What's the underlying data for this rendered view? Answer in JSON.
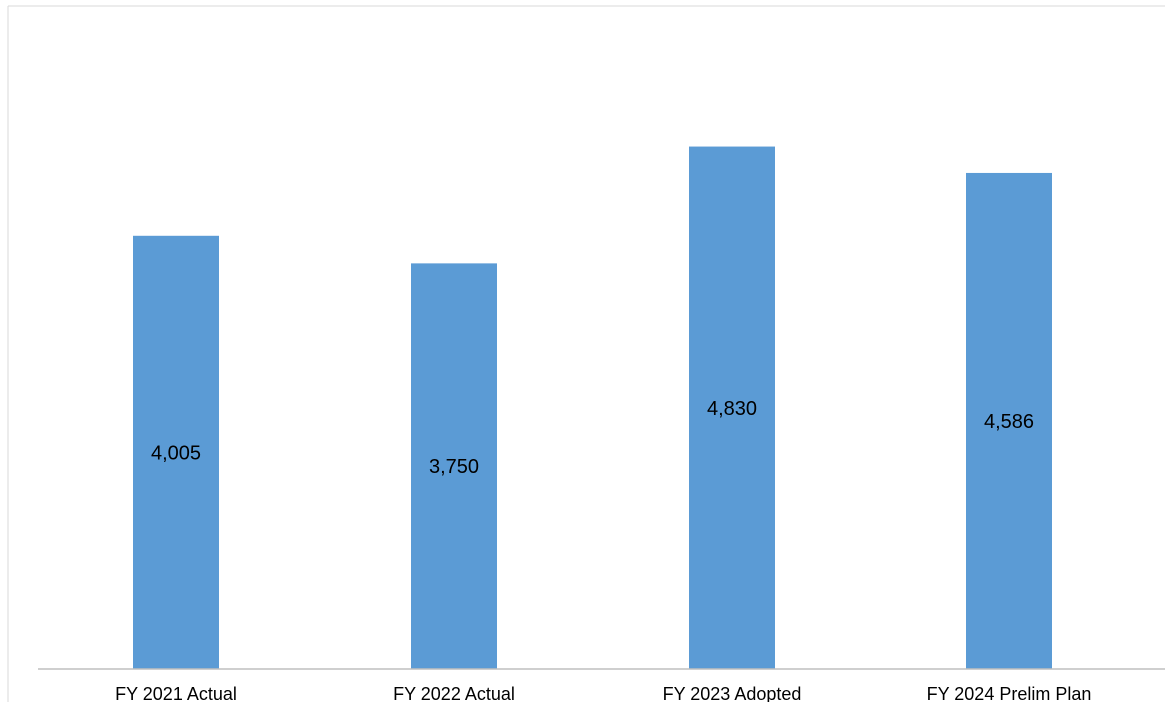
{
  "chart_data": {
    "type": "bar",
    "title": "",
    "xlabel": "",
    "ylabel": "",
    "categories": [
      "FY 2021 Actual",
      "FY 2022 Actual",
      "FY 2023 Adopted",
      "FY 2024 Prelim Plan"
    ],
    "values": [
      4005,
      3750,
      4830,
      4586
    ],
    "value_labels": [
      "4,005",
      "3,750",
      "4,830",
      "4,586"
    ],
    "ylim": [
      0,
      6000
    ],
    "grid": false,
    "legend": "none",
    "bar_color": "#5b9bd5"
  }
}
